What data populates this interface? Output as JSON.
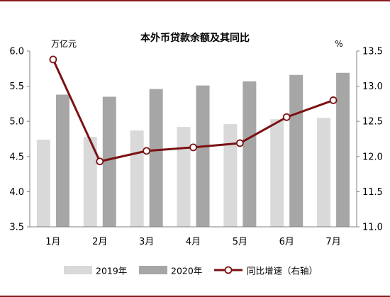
{
  "chart_data": {
    "type": "bar+line",
    "title": "本外币贷款余额及其同比",
    "categories": [
      "1月",
      "2月",
      "3月",
      "4月",
      "5月",
      "6月",
      "7月"
    ],
    "left_axis": {
      "unit": "万亿元",
      "range": [
        3.5,
        6.0
      ],
      "ticks": [
        "3.5",
        "4.0",
        "4.5",
        "5.0",
        "5.5",
        "6.0"
      ]
    },
    "right_axis": {
      "unit": "%",
      "range": [
        11.0,
        13.5
      ],
      "ticks": [
        "11.0",
        "11.5",
        "12.0",
        "12.5",
        "13.0",
        "13.5"
      ]
    },
    "series": [
      {
        "name": "2019年",
        "type": "bar",
        "axis": "left",
        "color": "#d9d9d9",
        "values": [
          4.74,
          4.78,
          4.87,
          4.92,
          4.96,
          5.03,
          5.05
        ]
      },
      {
        "name": "2020年",
        "type": "bar",
        "axis": "left",
        "color": "#a6a6a6",
        "values": [
          5.38,
          5.35,
          5.46,
          5.51,
          5.57,
          5.66,
          5.69
        ]
      },
      {
        "name": "同比增速（右轴）",
        "type": "line",
        "axis": "right",
        "color": "#7b1113",
        "values": [
          13.38,
          11.93,
          12.08,
          12.13,
          12.19,
          12.56,
          12.8
        ]
      }
    ],
    "grid": false,
    "legend_position": "bottom"
  }
}
